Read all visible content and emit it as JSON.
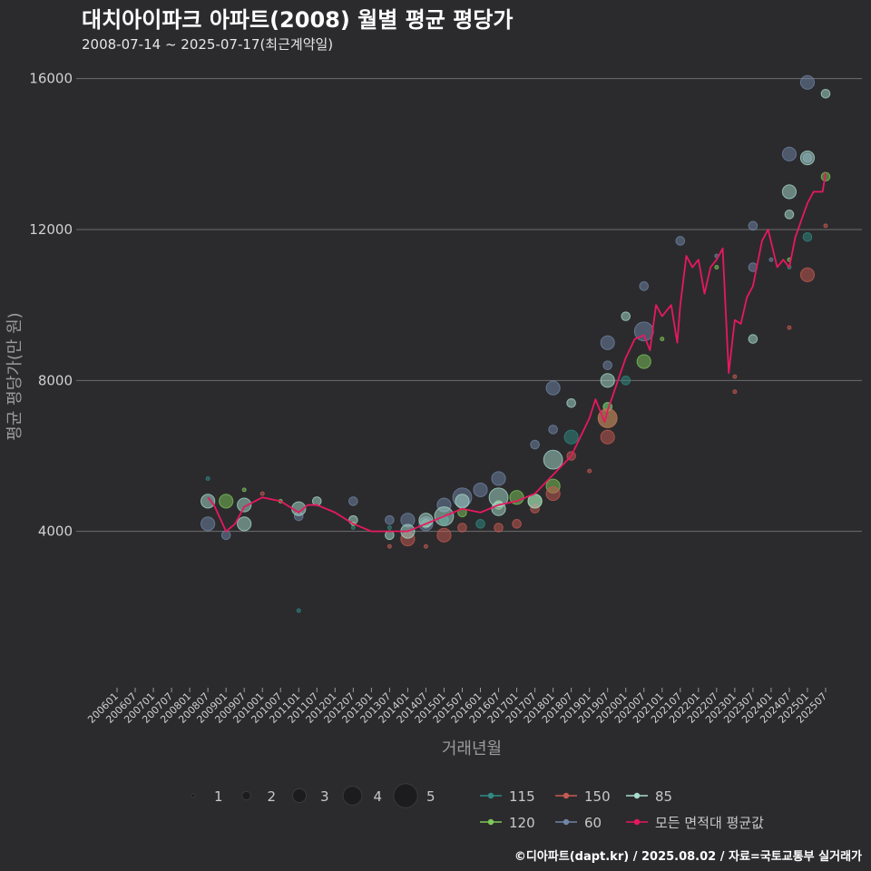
{
  "chart_data": {
    "type": "scatter",
    "title": "대치아이파크 아파트(2008) 월별 평균 평당가",
    "subtitle": "2008-07-14 ~ 2025-07-17(최근계약일)",
    "xlabel": "거래년월",
    "ylabel": "평균 평당가(만 원)",
    "ylim": [
      0,
      16400
    ],
    "yticks": [
      4000,
      8000,
      12000,
      16000
    ],
    "xticks": [
      "200601",
      "200607",
      "200701",
      "200707",
      "200801",
      "200807",
      "200901",
      "200907",
      "201001",
      "201007",
      "201101",
      "201107",
      "201201",
      "201207",
      "201301",
      "201307",
      "201401",
      "201407",
      "201501",
      "201507",
      "201601",
      "201607",
      "201701",
      "201707",
      "201801",
      "201807",
      "201901",
      "201907",
      "202001",
      "202007",
      "202101",
      "202107",
      "202201",
      "202207",
      "202301",
      "202307",
      "202401",
      "202407",
      "202501",
      "202507"
    ],
    "size_legend": {
      "values": [
        "1",
        "2",
        "3",
        "4",
        "5"
      ]
    },
    "series": [
      {
        "name": "115",
        "color": "#2e8b84",
        "points": [
          {
            "x": "200807",
            "y": 5400,
            "s": 1
          },
          {
            "x": "201101",
            "y": 1900,
            "s": 1
          },
          {
            "x": "201207",
            "y": 4100,
            "s": 1
          },
          {
            "x": "201307",
            "y": 4100,
            "s": 1
          },
          {
            "x": "201501",
            "y": 4300,
            "s": 2
          },
          {
            "x": "201601",
            "y": 4200,
            "s": 2
          },
          {
            "x": "201807",
            "y": 6500,
            "s": 3
          },
          {
            "x": "201907",
            "y": 7300,
            "s": 2
          },
          {
            "x": "202001",
            "y": 8000,
            "s": 2
          },
          {
            "x": "202407",
            "y": 11000,
            "s": 1
          },
          {
            "x": "202501",
            "y": 11800,
            "s": 2
          }
        ]
      },
      {
        "name": "120",
        "color": "#7ec85a",
        "points": [
          {
            "x": "200901",
            "y": 4800,
            "s": 3
          },
          {
            "x": "200907",
            "y": 5100,
            "s": 1
          },
          {
            "x": "201007",
            "y": 4800,
            "s": 1
          },
          {
            "x": "201207",
            "y": 4200,
            "s": 1
          },
          {
            "x": "201407",
            "y": 4200,
            "s": 2
          },
          {
            "x": "201507",
            "y": 4500,
            "s": 2
          },
          {
            "x": "201607",
            "y": 4700,
            "s": 2
          },
          {
            "x": "201701",
            "y": 4900,
            "s": 3
          },
          {
            "x": "201707",
            "y": 4800,
            "s": 3
          },
          {
            "x": "201801",
            "y": 5200,
            "s": 3
          },
          {
            "x": "201907",
            "y": 7000,
            "s": 4
          },
          {
            "x": "201907",
            "y": 7300,
            "s": 2
          },
          {
            "x": "202007",
            "y": 8500,
            "s": 3
          },
          {
            "x": "202101",
            "y": 9100,
            "s": 1
          },
          {
            "x": "202207",
            "y": 11000,
            "s": 1
          },
          {
            "x": "202407",
            "y": 11200,
            "s": 1
          },
          {
            "x": "202507",
            "y": 13400,
            "s": 2
          }
        ]
      },
      {
        "name": "150",
        "color": "#c85a52",
        "points": [
          {
            "x": "201001",
            "y": 5000,
            "s": 1
          },
          {
            "x": "201307",
            "y": 3600,
            "s": 1
          },
          {
            "x": "201401",
            "y": 3800,
            "s": 3
          },
          {
            "x": "201407",
            "y": 3600,
            "s": 1
          },
          {
            "x": "201501",
            "y": 3900,
            "s": 3
          },
          {
            "x": "201507",
            "y": 4100,
            "s": 2
          },
          {
            "x": "201607",
            "y": 4100,
            "s": 2
          },
          {
            "x": "201701",
            "y": 4200,
            "s": 2
          },
          {
            "x": "201707",
            "y": 4600,
            "s": 2
          },
          {
            "x": "201801",
            "y": 5000,
            "s": 3
          },
          {
            "x": "201807",
            "y": 6000,
            "s": 2
          },
          {
            "x": "201901",
            "y": 5600,
            "s": 1
          },
          {
            "x": "201907",
            "y": 6500,
            "s": 3
          },
          {
            "x": "201907",
            "y": 7000,
            "s": 4
          },
          {
            "x": "202301",
            "y": 8100,
            "s": 1
          },
          {
            "x": "202301",
            "y": 7700,
            "s": 1
          },
          {
            "x": "202407",
            "y": 9400,
            "s": 1
          },
          {
            "x": "202501",
            "y": 10800,
            "s": 3
          },
          {
            "x": "202507",
            "y": 12100,
            "s": 1
          }
        ]
      },
      {
        "name": "60",
        "color": "#7085a8",
        "points": [
          {
            "x": "200807",
            "y": 4200,
            "s": 3
          },
          {
            "x": "200901",
            "y": 3900,
            "s": 2
          },
          {
            "x": "201101",
            "y": 4400,
            "s": 2
          },
          {
            "x": "201207",
            "y": 4800,
            "s": 2
          },
          {
            "x": "201307",
            "y": 4300,
            "s": 2
          },
          {
            "x": "201401",
            "y": 4300,
            "s": 3
          },
          {
            "x": "201407",
            "y": 4200,
            "s": 3
          },
          {
            "x": "201501",
            "y": 4700,
            "s": 3
          },
          {
            "x": "201507",
            "y": 4900,
            "s": 4
          },
          {
            "x": "201601",
            "y": 5100,
            "s": 3
          },
          {
            "x": "201607",
            "y": 5400,
            "s": 3
          },
          {
            "x": "201707",
            "y": 6300,
            "s": 2
          },
          {
            "x": "201801",
            "y": 6700,
            "s": 2
          },
          {
            "x": "201801",
            "y": 7800,
            "s": 3
          },
          {
            "x": "201907",
            "y": 8400,
            "s": 2
          },
          {
            "x": "201907",
            "y": 9000,
            "s": 3
          },
          {
            "x": "202007",
            "y": 9300,
            "s": 4
          },
          {
            "x": "202007",
            "y": 10500,
            "s": 2
          },
          {
            "x": "202107",
            "y": 11700,
            "s": 2
          },
          {
            "x": "202207",
            "y": 11300,
            "s": 1
          },
          {
            "x": "202307",
            "y": 12100,
            "s": 2
          },
          {
            "x": "202307",
            "y": 11000,
            "s": 2
          },
          {
            "x": "202401",
            "y": 11200,
            "s": 1
          },
          {
            "x": "202407",
            "y": 14000,
            "s": 3
          },
          {
            "x": "202501",
            "y": 15900,
            "s": 3
          },
          {
            "x": "202501",
            "y": 13900,
            "s": 2
          }
        ]
      },
      {
        "name": "85",
        "color": "#a8dccd",
        "points": [
          {
            "x": "200807",
            "y": 4800,
            "s": 3
          },
          {
            "x": "200907",
            "y": 4200,
            "s": 3
          },
          {
            "x": "200907",
            "y": 4700,
            "s": 3
          },
          {
            "x": "201101",
            "y": 4600,
            "s": 3
          },
          {
            "x": "201107",
            "y": 4800,
            "s": 2
          },
          {
            "x": "201207",
            "y": 4300,
            "s": 2
          },
          {
            "x": "201307",
            "y": 3900,
            "s": 2
          },
          {
            "x": "201401",
            "y": 4000,
            "s": 3
          },
          {
            "x": "201407",
            "y": 4300,
            "s": 3
          },
          {
            "x": "201501",
            "y": 4400,
            "s": 4
          },
          {
            "x": "201507",
            "y": 4800,
            "s": 3
          },
          {
            "x": "201607",
            "y": 4600,
            "s": 3
          },
          {
            "x": "201607",
            "y": 4900,
            "s": 4
          },
          {
            "x": "201707",
            "y": 4800,
            "s": 3
          },
          {
            "x": "201801",
            "y": 5900,
            "s": 4
          },
          {
            "x": "201807",
            "y": 7400,
            "s": 2
          },
          {
            "x": "201907",
            "y": 8000,
            "s": 3
          },
          {
            "x": "202001",
            "y": 9700,
            "s": 2
          },
          {
            "x": "202307",
            "y": 9100,
            "s": 2
          },
          {
            "x": "202407",
            "y": 12400,
            "s": 2
          },
          {
            "x": "202407",
            "y": 13000,
            "s": 3
          },
          {
            "x": "202501",
            "y": 13900,
            "s": 3
          },
          {
            "x": "202507",
            "y": 15600,
            "s": 2
          }
        ]
      },
      {
        "name": "모든 면적대 평균값",
        "color": "#e8185f",
        "line": [
          [
            "200807",
            4900
          ],
          [
            "200809",
            4700
          ],
          [
            "200901",
            4000
          ],
          [
            "200904",
            4200
          ],
          [
            "200907",
            4650
          ],
          [
            "201001",
            4900
          ],
          [
            "201007",
            4800
          ],
          [
            "201101",
            4500
          ],
          [
            "201104",
            4700
          ],
          [
            "201107",
            4700
          ],
          [
            "201201",
            4500
          ],
          [
            "201207",
            4200
          ],
          [
            "201301",
            4000
          ],
          [
            "201307",
            4000
          ],
          [
            "201401",
            4000
          ],
          [
            "201407",
            4200
          ],
          [
            "201501",
            4400
          ],
          [
            "201507",
            4600
          ],
          [
            "201601",
            4500
          ],
          [
            "201607",
            4700
          ],
          [
            "201701",
            4800
          ],
          [
            "201707",
            5000
          ],
          [
            "201801",
            5500
          ],
          [
            "201807",
            6000
          ],
          [
            "201810",
            6500
          ],
          [
            "201901",
            7000
          ],
          [
            "201903",
            7500
          ],
          [
            "201906",
            6900
          ],
          [
            "201907",
            7200
          ],
          [
            "202001",
            8600
          ],
          [
            "202004",
            9100
          ],
          [
            "202007",
            9200
          ],
          [
            "202009",
            8800
          ],
          [
            "202011",
            10000
          ],
          [
            "202101",
            9700
          ],
          [
            "202104",
            10000
          ],
          [
            "202106",
            9000
          ],
          [
            "202107",
            10000
          ],
          [
            "202109",
            11300
          ],
          [
            "202111",
            11000
          ],
          [
            "202201",
            11200
          ],
          [
            "202203",
            10300
          ],
          [
            "202205",
            11000
          ],
          [
            "202207",
            11200
          ],
          [
            "202209",
            11500
          ],
          [
            "202211",
            8200
          ],
          [
            "202301",
            9600
          ],
          [
            "202303",
            9500
          ],
          [
            "202305",
            10200
          ],
          [
            "202307",
            10500
          ],
          [
            "202310",
            11700
          ],
          [
            "202312",
            12000
          ],
          [
            "202403",
            11000
          ],
          [
            "202405",
            11200
          ],
          [
            "202407",
            11000
          ],
          [
            "202409",
            11800
          ],
          [
            "202501",
            12700
          ],
          [
            "202503",
            13000
          ],
          [
            "202506",
            13000
          ],
          [
            "202507",
            13500
          ]
        ]
      }
    ],
    "legend_position": "bottom"
  },
  "footer": "©디아파트(dapt.kr) / 2025.08.02 / 자료=국토교통부 실거래가"
}
